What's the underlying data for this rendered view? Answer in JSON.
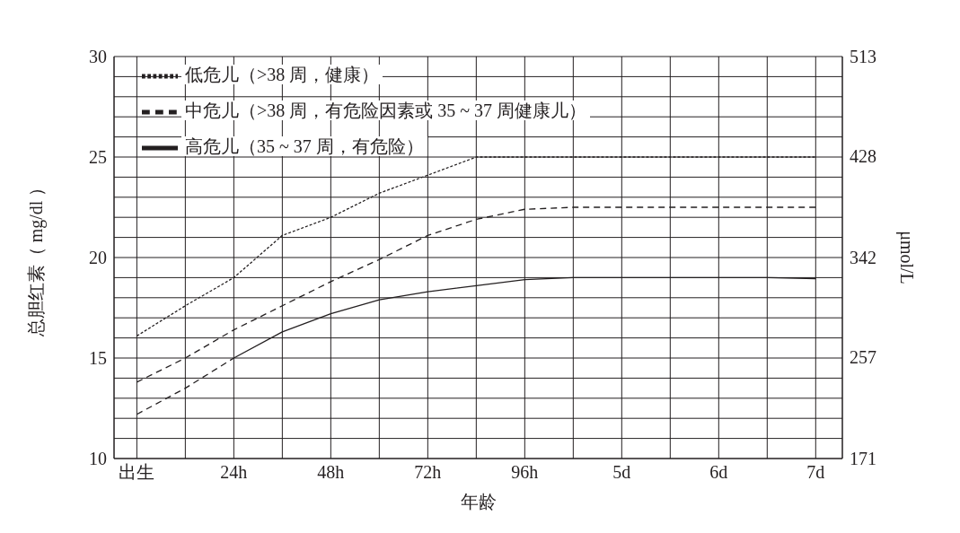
{
  "chart_data": {
    "type": "line",
    "xlabel": "年龄",
    "ylabel": "总胆红素（ mg/dl ）",
    "y2label": "μmol/L",
    "categories": [
      "出生",
      null,
      "24h",
      null,
      "48h",
      null,
      "72h",
      null,
      "96h",
      null,
      "5d",
      null,
      "6d",
      null,
      "7d"
    ],
    "ylim": [
      10,
      30
    ],
    "yticks": [
      10,
      {
        "value": 11,
        "label": null
      },
      {
        "value": 12,
        "label": null
      },
      {
        "value": 13,
        "label": null
      },
      {
        "value": 14,
        "label": null
      },
      15,
      {
        "value": 16,
        "label": null
      },
      {
        "value": 17,
        "label": null
      },
      {
        "value": 18,
        "label": null
      },
      {
        "value": 19,
        "label": null
      },
      20,
      {
        "value": 21,
        "label": null
      },
      {
        "value": 22,
        "label": null
      },
      {
        "value": 23,
        "label": null
      },
      {
        "value": 24,
        "label": null
      },
      25,
      {
        "value": 26,
        "label": null
      },
      {
        "value": 27,
        "label": null
      },
      {
        "value": 28,
        "label": null
      },
      {
        "value": 29,
        "label": null
      },
      30
    ],
    "y2lim": [
      171,
      513
    ],
    "y2ticks": [
      171,
      257,
      342,
      428,
      513
    ],
    "grid": true,
    "legend": "top",
    "marker": "none",
    "series": [
      {
        "name": "低危儿（>38 周，健康）",
        "color": "#231f20",
        "line_style": "dotted",
        "values": [
          16.1,
          17.6,
          19.0,
          21.1,
          22.0,
          23.2,
          24.1,
          25.0,
          25.0,
          25.0,
          25.0,
          25.0,
          25.0,
          25.0,
          25.0
        ]
      },
      {
        "name": "中危儿（>38 周，有危险因素或 35 ~ 37 周健康儿）",
        "color": "#231f20",
        "line_style": "dashed",
        "values": [
          13.8,
          15.0,
          16.4,
          17.6,
          18.8,
          19.9,
          21.1,
          21.9,
          22.4,
          22.5,
          22.5,
          22.5,
          22.5,
          22.5,
          22.5
        ]
      },
      {
        "name": "高危儿（35 ~ 37 周，有危险）",
        "color": "#231f20",
        "line_style": "solid",
        "values": [
          null,
          null,
          15.0,
          16.3,
          17.2,
          17.9,
          18.3,
          18.6,
          18.9,
          19.0,
          19.0,
          19.0,
          19.0,
          19.0,
          18.95
        ]
      },
      {
        "color": "#231f20",
        "line_style": "dashed",
        "values": [
          12.2,
          13.5,
          15.0,
          null,
          null,
          null,
          null,
          null,
          null,
          null,
          null,
          null,
          null,
          null,
          null
        ]
      }
    ]
  }
}
